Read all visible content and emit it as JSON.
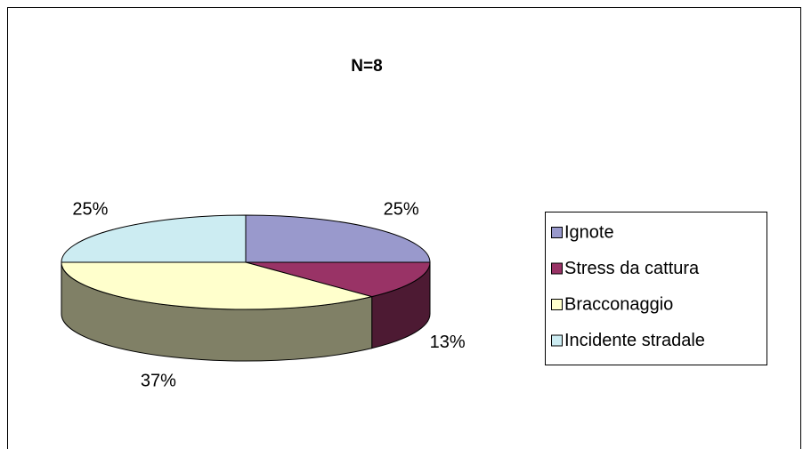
{
  "chart_data": {
    "type": "pie",
    "title": "N=8",
    "categories": [
      "Ignote",
      "Stress da cattura",
      "Bracconaggio",
      "Incidente stradale"
    ],
    "values": [
      25,
      13,
      37,
      25
    ],
    "value_labels": [
      "25%",
      "13%",
      "37%",
      "25%"
    ],
    "colors": [
      "#9999cc",
      "#993366",
      "#ffffcc",
      "#ccecf2"
    ],
    "legend": "right"
  }
}
